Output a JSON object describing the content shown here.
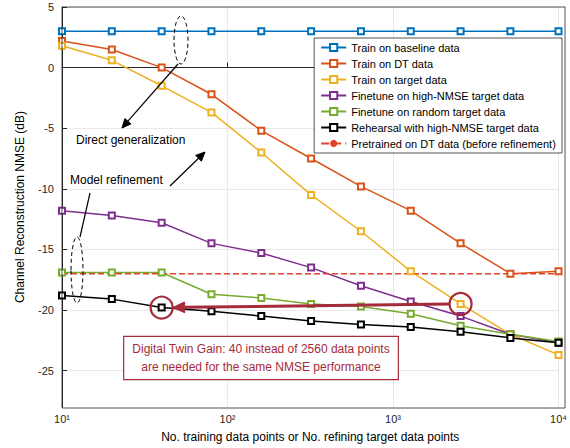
{
  "chart_data": {
    "type": "line",
    "x_label": "No. training data points or No. refining target data points",
    "y_label": "Channel Reconstruction NMSE (dB)",
    "log": "x",
    "grid": true,
    "legend": "top right",
    "x": [
      10,
      20,
      40,
      80,
      160,
      320,
      640,
      1280,
      2560,
      5120,
      10000
    ],
    "xlim": [
      10,
      10000
    ],
    "xticks": [
      {
        "value": 10,
        "label": "10¹"
      },
      {
        "value": 100,
        "label": "10²"
      },
      {
        "value": 1000,
        "label": "10³"
      },
      {
        "value": 10000,
        "label": "10⁴"
      }
    ],
    "ylim": [
      -28,
      5
    ],
    "yticks": [
      5,
      0,
      -5,
      -10,
      -15,
      -20,
      -25
    ],
    "series": [
      {
        "name": "Train on baseline data",
        "color": "#0072BD",
        "marker": "square",
        "line_style": "solid",
        "values": [
          3.0,
          3.0,
          3.0,
          3.0,
          3.0,
          3.0,
          3.0,
          3.0,
          3.0,
          3.0,
          3.0
        ]
      },
      {
        "name": "Train on DT data",
        "color": "#D95319",
        "marker": "square",
        "line_style": "solid",
        "values": [
          2.2,
          1.5,
          0.0,
          -2.2,
          -5.2,
          -7.5,
          -9.8,
          -11.8,
          -14.5,
          -17.0,
          -16.8
        ]
      },
      {
        "name": "Train on target data",
        "color": "#EDB120",
        "marker": "square",
        "line_style": "solid",
        "values": [
          1.8,
          0.6,
          -1.5,
          -3.7,
          -7.0,
          -10.5,
          -13.5,
          -16.8,
          -19.5,
          -22.0,
          -23.7
        ]
      },
      {
        "name": "Finetune on high-NMSE target data",
        "color": "#7E2F8E",
        "marker": "square",
        "line_style": "solid",
        "values": [
          -11.8,
          -12.2,
          -12.8,
          -14.5,
          -15.3,
          -16.5,
          -18.0,
          -19.3,
          -20.5,
          -22.0,
          -22.7
        ]
      },
      {
        "name": "Finetune on random target data",
        "color": "#77AC30",
        "marker": "square",
        "line_style": "solid",
        "values": [
          -16.9,
          -16.9,
          -16.9,
          -18.7,
          -19.0,
          -19.5,
          -19.7,
          -20.3,
          -21.3,
          -22.0,
          -22.6
        ]
      },
      {
        "name": "Rehearsal with high-NMSE target data",
        "color": "#000000",
        "marker": "square",
        "line_style": "solid",
        "values": [
          -18.8,
          -19.1,
          -19.8,
          -20.1,
          -20.5,
          -20.9,
          -21.2,
          -21.4,
          -21.8,
          -22.3,
          -22.7
        ]
      },
      {
        "name": "Pretrained on DT data (before refinement)",
        "color": "#E0442E",
        "marker": "none",
        "line_style": "dashed",
        "values": [
          -17.0,
          -17.0,
          -17.0,
          -17.0,
          -17.0,
          -17.0,
          -17.0,
          -17.0,
          -17.0,
          -17.0,
          -17.0
        ]
      }
    ],
    "annotations": [
      {
        "text": "Direct generalization"
      },
      {
        "text": "Model refinement"
      },
      {
        "text": [
          "Digital Twin Gain: 40 instead of 2560 data points",
          "are needed for the same NMSE performance"
        ],
        "color": "#A52A3A",
        "circles": [
          {
            "x": 2560,
            "y": -19.5
          },
          {
            "x": 40,
            "y": -19.8
          }
        ]
      }
    ]
  }
}
